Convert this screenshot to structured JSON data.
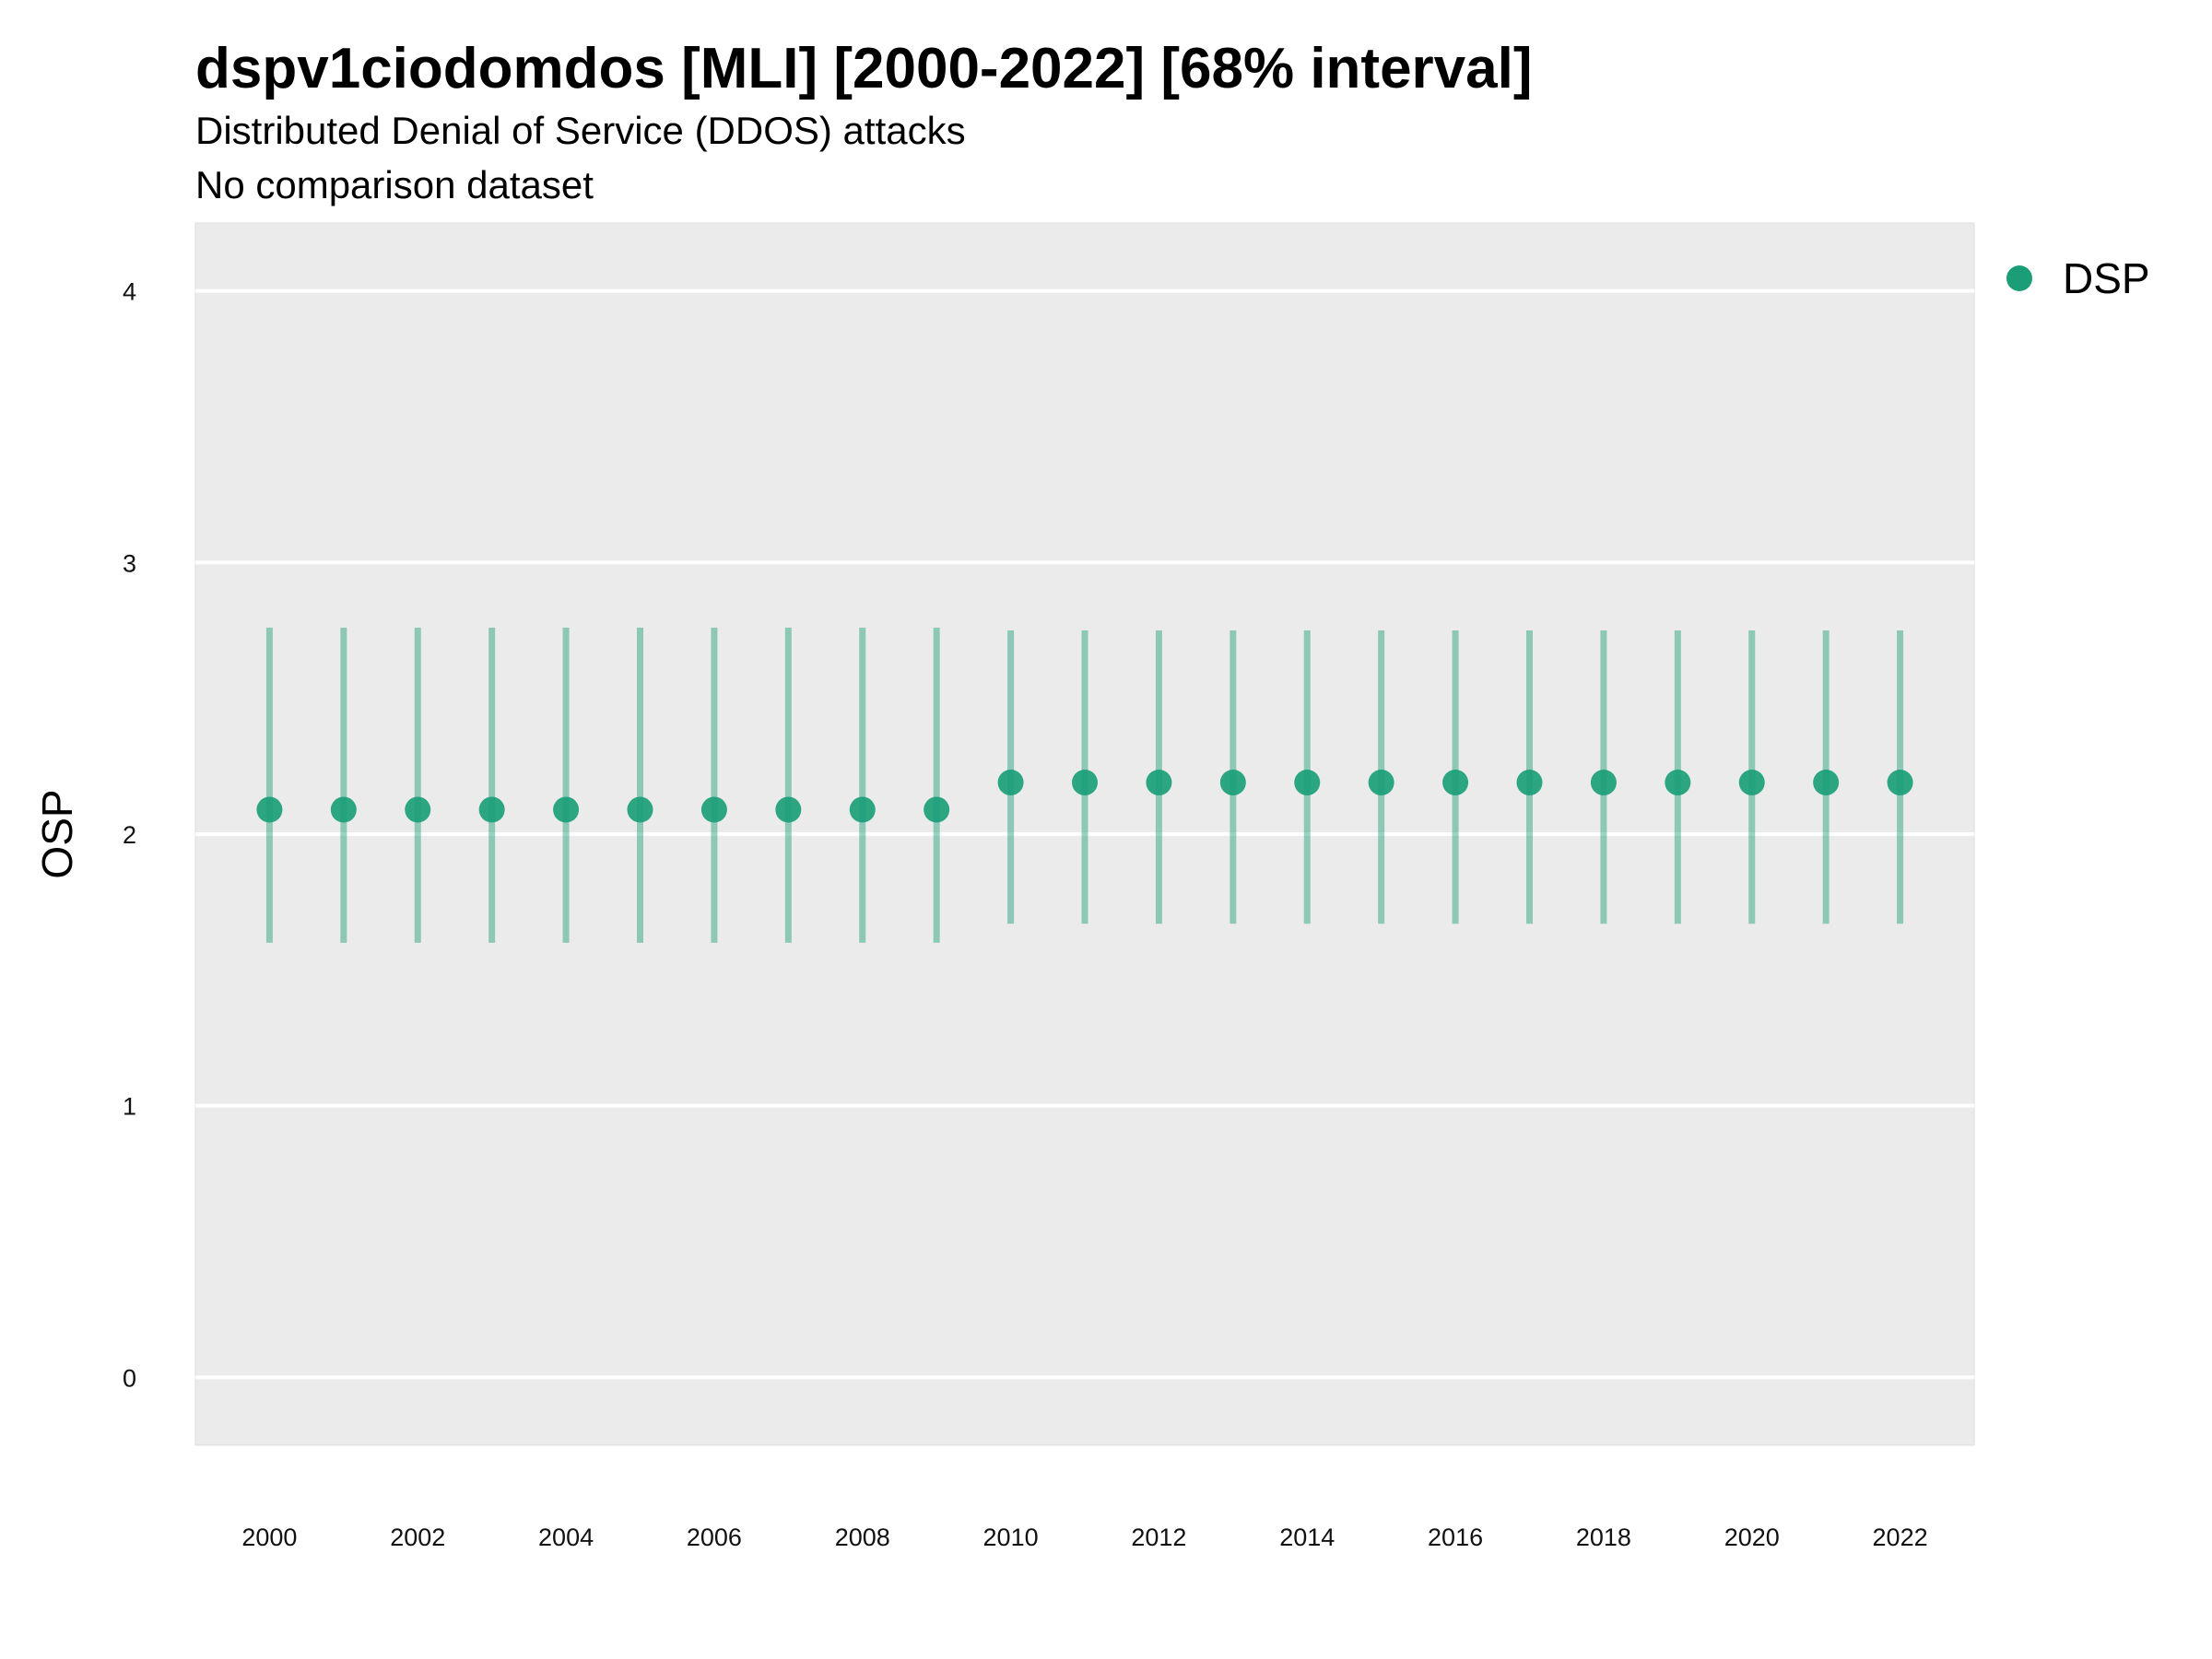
{
  "chart_data": {
    "type": "scatter",
    "title": "dspv1ciodomdos [MLI] [2000-2022] [68% interval]",
    "subtitle": "Distributed Denial of Service (DDOS) attacks",
    "caption_line": "No comparison dataset",
    "xlabel": "",
    "ylabel": "OSP",
    "ylim": [
      -0.25,
      4.25
    ],
    "xlim": [
      1999,
      2023
    ],
    "y_ticks": [
      0,
      1,
      2,
      3,
      4
    ],
    "x_ticks": [
      2000,
      2002,
      2004,
      2006,
      2008,
      2010,
      2012,
      2014,
      2016,
      2018,
      2020,
      2022
    ],
    "grid": true,
    "legend_position": "right",
    "series": [
      {
        "name": "DSP",
        "color": "#1b9e77",
        "points": [
          {
            "x": 2000,
            "y": 2.09,
            "low": 1.6,
            "high": 2.76
          },
          {
            "x": 2001,
            "y": 2.09,
            "low": 1.6,
            "high": 2.76
          },
          {
            "x": 2002,
            "y": 2.09,
            "low": 1.6,
            "high": 2.76
          },
          {
            "x": 2003,
            "y": 2.09,
            "low": 1.6,
            "high": 2.76
          },
          {
            "x": 2004,
            "y": 2.09,
            "low": 1.6,
            "high": 2.76
          },
          {
            "x": 2005,
            "y": 2.09,
            "low": 1.6,
            "high": 2.76
          },
          {
            "x": 2006,
            "y": 2.09,
            "low": 1.6,
            "high": 2.76
          },
          {
            "x": 2007,
            "y": 2.09,
            "low": 1.6,
            "high": 2.76
          },
          {
            "x": 2008,
            "y": 2.09,
            "low": 1.6,
            "high": 2.76
          },
          {
            "x": 2009,
            "y": 2.09,
            "low": 1.6,
            "high": 2.76
          },
          {
            "x": 2010,
            "y": 2.19,
            "low": 1.67,
            "high": 2.75
          },
          {
            "x": 2011,
            "y": 2.19,
            "low": 1.67,
            "high": 2.75
          },
          {
            "x": 2012,
            "y": 2.19,
            "low": 1.67,
            "high": 2.75
          },
          {
            "x": 2013,
            "y": 2.19,
            "low": 1.67,
            "high": 2.75
          },
          {
            "x": 2014,
            "y": 2.19,
            "low": 1.67,
            "high": 2.75
          },
          {
            "x": 2015,
            "y": 2.19,
            "low": 1.67,
            "high": 2.75
          },
          {
            "x": 2016,
            "y": 2.19,
            "low": 1.67,
            "high": 2.75
          },
          {
            "x": 2017,
            "y": 2.19,
            "low": 1.67,
            "high": 2.75
          },
          {
            "x": 2018,
            "y": 2.19,
            "low": 1.67,
            "high": 2.75
          },
          {
            "x": 2019,
            "y": 2.19,
            "low": 1.67,
            "high": 2.75
          },
          {
            "x": 2020,
            "y": 2.19,
            "low": 1.67,
            "high": 2.75
          },
          {
            "x": 2021,
            "y": 2.19,
            "low": 1.67,
            "high": 2.75
          },
          {
            "x": 2022,
            "y": 2.19,
            "low": 1.67,
            "high": 2.75
          }
        ]
      }
    ]
  }
}
